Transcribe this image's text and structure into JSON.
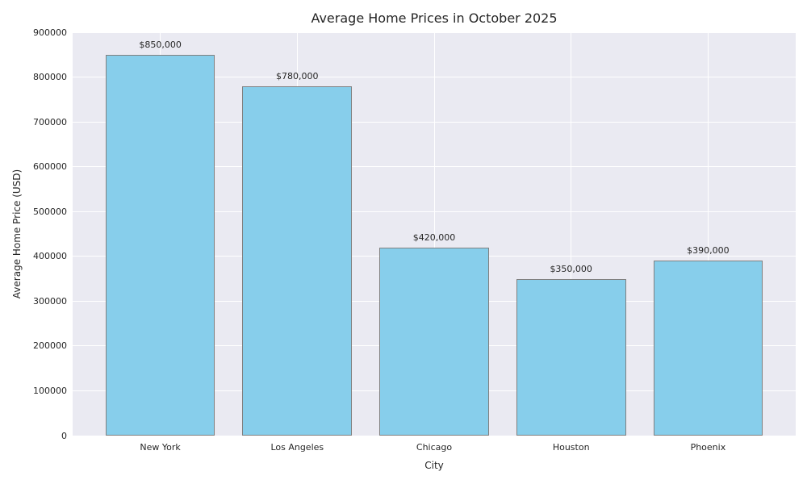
{
  "chart_data": {
    "type": "bar",
    "title": "Average Home Prices in October 2025",
    "xlabel": "City",
    "ylabel": "Average Home Price (USD)",
    "categories": [
      "New York",
      "Los Angeles",
      "Chicago",
      "Houston",
      "Phoenix"
    ],
    "values": [
      850000,
      780000,
      420000,
      350000,
      390000
    ],
    "bar_labels": [
      "$850,000",
      "$780,000",
      "$420,000",
      "$350,000",
      "$390,000"
    ],
    "ylim": [
      0,
      900000
    ],
    "yticks": [
      0,
      100000,
      200000,
      300000,
      400000,
      500000,
      600000,
      700000,
      800000,
      900000
    ],
    "ytick_labels": [
      "0",
      "100000",
      "200000",
      "300000",
      "400000",
      "500000",
      "600000",
      "700000",
      "800000",
      "900000"
    ],
    "bar_width": 0.8,
    "grid": true,
    "legend_position": "none",
    "colors": {
      "bar_fill": "#87CEEB",
      "bar_edge": "#808080",
      "plot_bg": "#EAEAF2",
      "grid_line": "#FFFFFF",
      "text": "#262626",
      "page_bg": "#FFFFFF"
    }
  }
}
